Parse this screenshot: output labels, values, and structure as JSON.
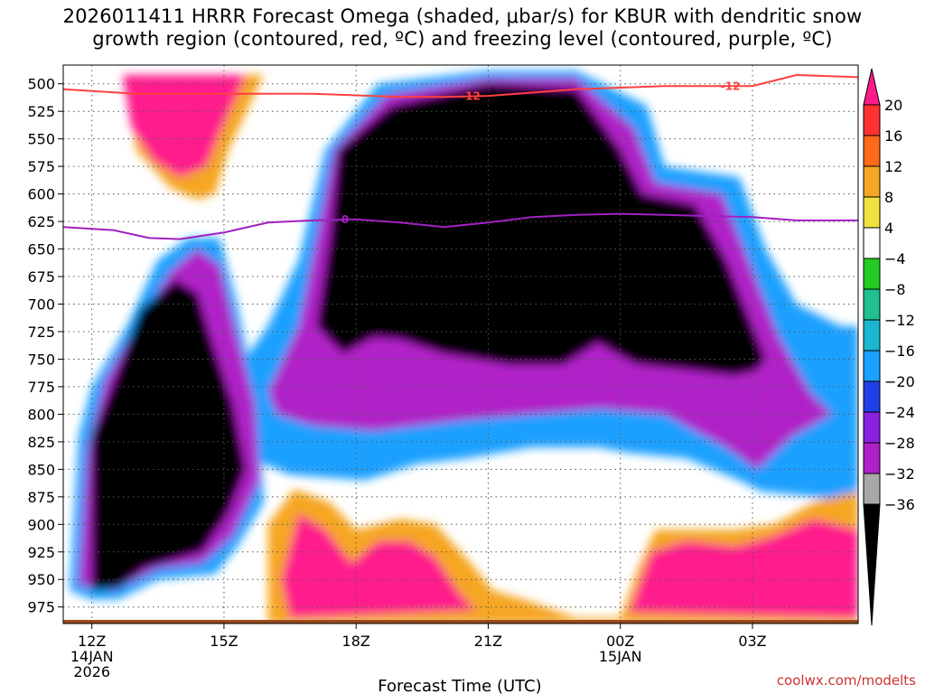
{
  "title": {
    "line1": "2026011411 HRRR Forecast Omega (shaded, μbar/s) for KBUR with dendritic snow",
    "line2": "growth region (contoured, red, ºC) and freezing level (contoured, purple, ºC)"
  },
  "credit": "coolwx.com/modelts",
  "chart_data": {
    "type": "heatmap",
    "xlabel": "Forecast Time (UTC)",
    "ylabel": "",
    "x_range_hours": [
      -0.65,
      17.4
    ],
    "y_range_hpa": [
      483,
      990
    ],
    "x_ticks": [
      {
        "hour": 0,
        "lines": [
          "12Z",
          "14JAN",
          "2026"
        ]
      },
      {
        "hour": 3,
        "lines": [
          "15Z"
        ]
      },
      {
        "hour": 6,
        "lines": [
          "18Z"
        ]
      },
      {
        "hour": 9,
        "lines": [
          "21Z"
        ]
      },
      {
        "hour": 12,
        "lines": [
          "00Z",
          "15JAN"
        ]
      },
      {
        "hour": 15,
        "lines": [
          "03Z"
        ]
      }
    ],
    "y_ticks": [
      500,
      525,
      550,
      575,
      600,
      625,
      650,
      675,
      700,
      725,
      750,
      775,
      800,
      825,
      850,
      875,
      900,
      925,
      950,
      975
    ],
    "grid": true,
    "colorbar": {
      "labels": [
        "20",
        "16",
        "12",
        "8",
        "4",
        "−4",
        "−8",
        "−12",
        "−16",
        "−20",
        "−24",
        "−28",
        "−32",
        "−36"
      ],
      "bins": [
        {
          "lo": 20,
          "hi": null,
          "color": "#ff1a8c"
        },
        {
          "lo": 16,
          "hi": 20,
          "color": "#ff3030"
        },
        {
          "lo": 12,
          "hi": 16,
          "color": "#ff6a1a"
        },
        {
          "lo": 8,
          "hi": 12,
          "color": "#f5a623"
        },
        {
          "lo": 4,
          "hi": 8,
          "color": "#f0e040"
        },
        {
          "lo": -4,
          "hi": 4,
          "color": "#ffffff"
        },
        {
          "lo": -8,
          "hi": -4,
          "color": "#22cc22"
        },
        {
          "lo": -12,
          "hi": -8,
          "color": "#20c090"
        },
        {
          "lo": -16,
          "hi": -12,
          "color": "#1ab8d0"
        },
        {
          "lo": -20,
          "hi": -16,
          "color": "#1aa0ff"
        },
        {
          "lo": -24,
          "hi": -20,
          "color": "#2040e8"
        },
        {
          "lo": -28,
          "hi": -24,
          "color": "#8a20e0"
        },
        {
          "lo": -32,
          "hi": -28,
          "color": "#b020c8"
        },
        {
          "lo": -36,
          "hi": -32,
          "color": "#a8a8a8"
        },
        {
          "lo": null,
          "hi": -36,
          "color": "#000000"
        }
      ]
    },
    "series": [
      {
        "label": "-12",
        "color": "#ff4040",
        "points": [
          [
            -0.65,
            505
          ],
          [
            1,
            509
          ],
          [
            3,
            509
          ],
          [
            5,
            509
          ],
          [
            7,
            512
          ],
          [
            8,
            512
          ],
          [
            9,
            511
          ],
          [
            11,
            505
          ],
          [
            13,
            502
          ],
          [
            14,
            502
          ],
          [
            15,
            502
          ],
          [
            16,
            492
          ],
          [
            17.4,
            494
          ]
        ],
        "label_positions": [
          [
            8.6,
            511
          ],
          [
            14.5,
            502
          ]
        ]
      },
      {
        "label": "0",
        "color": "#a020c0",
        "points": [
          [
            -0.65,
            630
          ],
          [
            0.5,
            633
          ],
          [
            1.3,
            640
          ],
          [
            2,
            641
          ],
          [
            3,
            635
          ],
          [
            4,
            626
          ],
          [
            5,
            624
          ],
          [
            6,
            623
          ],
          [
            7,
            626
          ],
          [
            8,
            630
          ],
          [
            9,
            626
          ],
          [
            10,
            621
          ],
          [
            11,
            619
          ],
          [
            12,
            618
          ],
          [
            13,
            619
          ],
          [
            14,
            620
          ],
          [
            15,
            621
          ],
          [
            16,
            624
          ],
          [
            17.4,
            624
          ]
        ],
        "label_positions": [
          [
            5.75,
            623
          ]
        ]
      }
    ],
    "cells": {
      "layers": [
        {
          "value": -20,
          "regions": [
            [
              [
                2.5,
                860
              ],
              [
                3.3,
                760
              ],
              [
                4,
                720
              ],
              [
                4.7,
                660
              ],
              [
                5.3,
                560
              ],
              [
                6.5,
                500
              ],
              [
                9,
                488
              ],
              [
                11,
                488
              ],
              [
                12.6,
                520
              ],
              [
                13,
                575
              ],
              [
                14.7,
                585
              ],
              [
                15.3,
                650
              ],
              [
                16,
                700
              ],
              [
                17,
                720
              ],
              [
                17.4,
                720
              ],
              [
                17.4,
                880
              ],
              [
                16.4,
                875
              ],
              [
                15.2,
                870
              ],
              [
                14.7,
                860
              ],
              [
                13.5,
                840
              ],
              [
                12.2,
                835
              ],
              [
                11.5,
                830
              ],
              [
                10,
                830
              ],
              [
                8.5,
                840
              ],
              [
                7.4,
                845
              ],
              [
                6.2,
                860
              ],
              [
                4.5,
                855
              ],
              [
                3.6,
                840
              ]
            ],
            [
              [
                -0.5,
                960
              ],
              [
                -0.3,
                820
              ],
              [
                0,
                775
              ],
              [
                0.8,
                720
              ],
              [
                1.5,
                660
              ],
              [
                2.2,
                640
              ],
              [
                2.9,
                640
              ],
              [
                3.3,
                700
              ],
              [
                3.6,
                760
              ],
              [
                3.8,
                800
              ],
              [
                3.9,
                880
              ],
              [
                3.3,
                920
              ],
              [
                2.8,
                945
              ],
              [
                1.5,
                950
              ],
              [
                0.6,
                968
              ],
              [
                0,
                968
              ]
            ]
          ]
        },
        {
          "value": -30,
          "regions": [
            [
              [
                4,
                780
              ],
              [
                4.7,
                720
              ],
              [
                5,
                660
              ],
              [
                5.5,
                560
              ],
              [
                6.7,
                510
              ],
              [
                9,
                495
              ],
              [
                11,
                495
              ],
              [
                12.3,
                540
              ],
              [
                12.8,
                590
              ],
              [
                14.3,
                600
              ],
              [
                15,
                670
              ],
              [
                15.6,
                730
              ],
              [
                16.3,
                780
              ],
              [
                16.8,
                800
              ],
              [
                15.9,
                820
              ],
              [
                15.1,
                850
              ],
              [
                14.4,
                830
              ],
              [
                13,
                800
              ],
              [
                11.5,
                795
              ],
              [
                10,
                800
              ],
              [
                8.5,
                805
              ],
              [
                6.4,
                815
              ],
              [
                5,
                810
              ],
              [
                4.2,
                800
              ]
            ],
            [
              [
                -0.3,
                955
              ],
              [
                -0.1,
                830
              ],
              [
                0.3,
                770
              ],
              [
                1,
                720
              ],
              [
                1.8,
                670
              ],
              [
                2.4,
                650
              ],
              [
                2.9,
                665
              ],
              [
                3.3,
                730
              ],
              [
                3.7,
                790
              ],
              [
                3.8,
                860
              ],
              [
                3.2,
                910
              ],
              [
                2.5,
                935
              ],
              [
                1.5,
                940
              ],
              [
                0.5,
                960
              ]
            ]
          ]
        },
        {
          "value": -40,
          "regions": [
            [
              [
                5.1,
                720
              ],
              [
                5.4,
                640
              ],
              [
                5.6,
                560
              ],
              [
                6.8,
                520
              ],
              [
                9,
                500
              ],
              [
                11,
                505
              ],
              [
                12,
                560
              ],
              [
                12.5,
                600
              ],
              [
                13.7,
                610
              ],
              [
                14.4,
                660
              ],
              [
                15,
                720
              ],
              [
                15.3,
                750
              ],
              [
                15.1,
                760
              ],
              [
                14.6,
                765
              ],
              [
                13.6,
                760
              ],
              [
                12.4,
                755
              ],
              [
                11.9,
                745
              ],
              [
                11.5,
                735
              ],
              [
                10.7,
                755
              ],
              [
                9.5,
                755
              ],
              [
                8,
                745
              ],
              [
                7,
                732
              ],
              [
                6.4,
                730
              ],
              [
                5.7,
                745
              ]
            ],
            [
              [
                0,
                960
              ],
              [
                0,
                820
              ],
              [
                0.5,
                770
              ],
              [
                1.1,
                705
              ],
              [
                1.9,
                678
              ],
              [
                2.4,
                690
              ],
              [
                2.7,
                730
              ],
              [
                3.2,
                790
              ],
              [
                3.5,
                850
              ],
              [
                3.1,
                890
              ],
              [
                2.5,
                925
              ],
              [
                1.2,
                940
              ],
              [
                0.6,
                958
              ]
            ]
          ]
        },
        {
          "value": 8,
          "regions": [
            [
              [
                0.1,
                492
              ],
              [
                0.8,
                492
              ],
              [
                1,
                560
              ],
              [
                1.8,
                595
              ],
              [
                2.4,
                605
              ],
              [
                2.8,
                600
              ],
              [
                3.1,
                560
              ],
              [
                3.9,
                492
              ],
              [
                0.6,
                492
              ]
            ],
            [
              [
                4,
                900
              ],
              [
                4.6,
                868
              ],
              [
                5.4,
                880
              ],
              [
                6,
                905
              ],
              [
                7,
                895
              ],
              [
                7.8,
                900
              ],
              [
                8.6,
                935
              ],
              [
                9.1,
                960
              ],
              [
                9.8,
                968
              ],
              [
                11,
                985
              ],
              [
                12,
                985
              ],
              [
                12.4,
                940
              ],
              [
                12.8,
                905
              ],
              [
                13.6,
                905
              ],
              [
                14.6,
                905
              ],
              [
                15.5,
                900
              ],
              [
                16.4,
                880
              ],
              [
                17.4,
                870
              ],
              [
                17.4,
                990
              ],
              [
                4,
                990
              ]
            ]
          ]
        },
        {
          "value": 22,
          "regions": [
            [
              [
                0.7,
                492
              ],
              [
                0.9,
                540
              ],
              [
                1.4,
                570
              ],
              [
                2,
                585
              ],
              [
                2.6,
                575
              ],
              [
                2.9,
                545
              ],
              [
                3.5,
                492
              ]
            ],
            [
              [
                4.3,
                950
              ],
              [
                4.7,
                890
              ],
              [
                5.3,
                905
              ],
              [
                5.9,
                935
              ],
              [
                6.5,
                915
              ],
              [
                7.2,
                915
              ],
              [
                7.8,
                930
              ],
              [
                8.3,
                960
              ],
              [
                8.7,
                978
              ],
              [
                4.5,
                985
              ]
            ],
            [
              [
                12.2,
                980
              ],
              [
                12.7,
                925
              ],
              [
                13.5,
                915
              ],
              [
                14.6,
                920
              ],
              [
                15.4,
                912
              ],
              [
                16.4,
                895
              ],
              [
                17.4,
                905
              ],
              [
                17.4,
                985
              ]
            ]
          ]
        }
      ]
    }
  }
}
